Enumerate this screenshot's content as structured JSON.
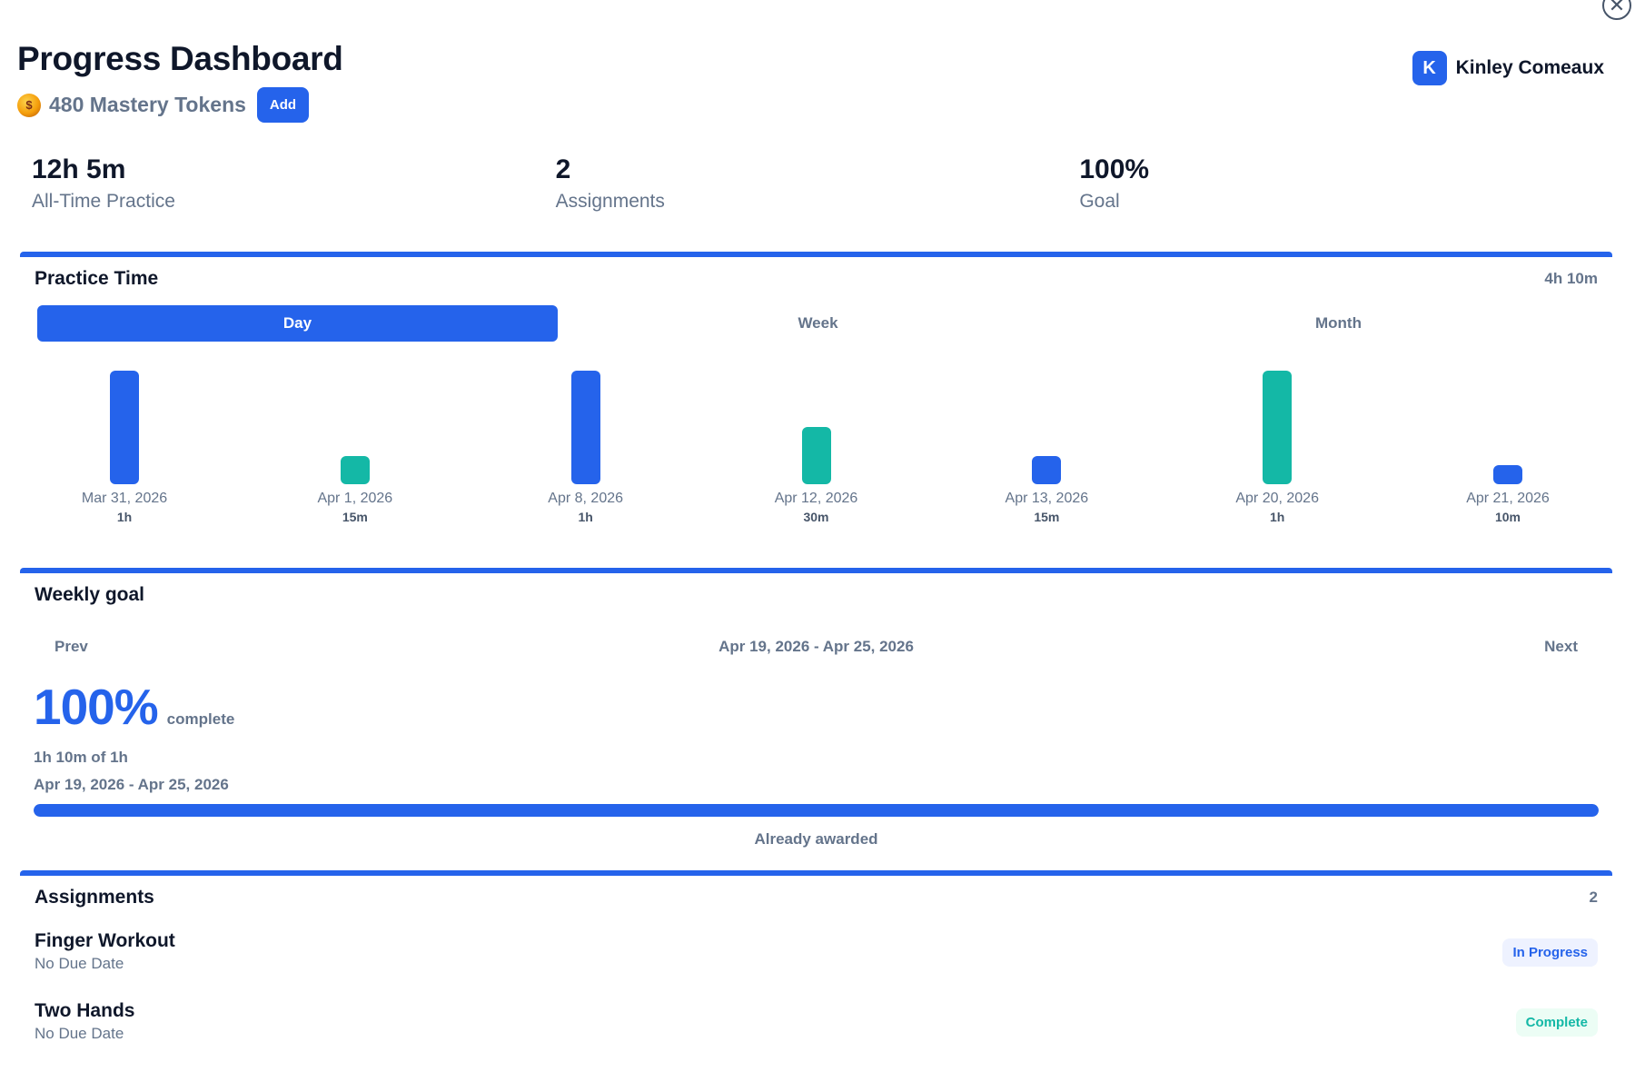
{
  "header": {
    "title": "Progress Dashboard",
    "tokens_label": "480 Mastery Tokens",
    "add_label": "Add",
    "user_initial": "K",
    "user_name": "Kinley Comeaux"
  },
  "stats": [
    {
      "value": "12h 5m",
      "label": "All-Time Practice"
    },
    {
      "value": "2",
      "label": "Assignments"
    },
    {
      "value": "100%",
      "label": "Goal"
    }
  ],
  "practice": {
    "title": "Practice Time",
    "total": "4h 10m",
    "tabs": [
      "Day",
      "Week",
      "Month"
    ],
    "active_tab": "Day"
  },
  "colors": {
    "primary": "#2563eb",
    "teal": "#14b8a6",
    "muted": "#64748b",
    "dark": "#0f172a"
  },
  "chart_data": {
    "type": "bar",
    "categories": [
      "Mar 31, 2026",
      "Apr 1, 2026",
      "Apr 8, 2026",
      "Apr 12, 2026",
      "Apr 13, 2026",
      "Apr 20, 2026",
      "Apr 21, 2026"
    ],
    "value_labels": [
      "1h",
      "15m",
      "1h",
      "30m",
      "15m",
      "1h",
      "10m"
    ],
    "values": [
      60,
      15,
      60,
      30,
      15,
      60,
      10
    ],
    "units": "minutes",
    "bar_colors": [
      "#2563eb",
      "#14b8a6",
      "#2563eb",
      "#14b8a6",
      "#2563eb",
      "#14b8a6",
      "#2563eb"
    ],
    "ylim": [
      0,
      60
    ]
  },
  "weekly_goal": {
    "title": "Weekly goal",
    "prev_label": "Prev",
    "next_label": "Next",
    "range": "Apr 19, 2026 - Apr 25, 2026",
    "percent": "100%",
    "complete_word": "complete",
    "progress_text": "1h 10m of 1h",
    "range_text": "Apr 19, 2026 - Apr 25, 2026",
    "progress_fraction": 1.0,
    "status_text": "Already awarded"
  },
  "assignments": {
    "title": "Assignments",
    "count": "2",
    "items": [
      {
        "name": "Finger Workout",
        "due": "No Due Date",
        "status": "In Progress"
      },
      {
        "name": "Two Hands",
        "due": "No Due Date",
        "status": "Complete"
      }
    ]
  }
}
